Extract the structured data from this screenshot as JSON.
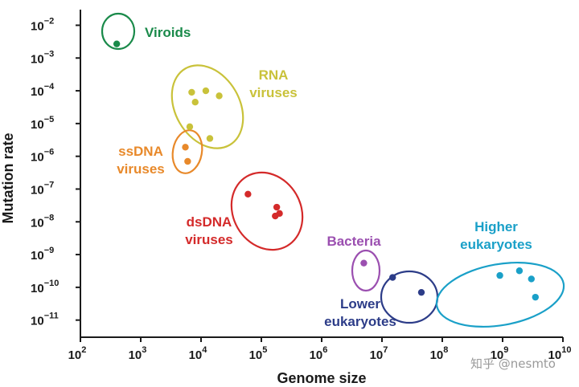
{
  "chart_data": {
    "type": "scatter",
    "xlabel": "Genome size",
    "ylabel": "Mutation rate",
    "x_scale": "log",
    "y_scale": "log",
    "xlim": [
      100,
      10000000000
    ],
    "ylim": [
      3e-12,
      0.03
    ],
    "x_ticks": [
      {
        "base": "10",
        "exp": "2"
      },
      {
        "base": "10",
        "exp": "3"
      },
      {
        "base": "10",
        "exp": "4"
      },
      {
        "base": "10",
        "exp": "5"
      },
      {
        "base": "10",
        "exp": "6"
      },
      {
        "base": "10",
        "exp": "7"
      },
      {
        "base": "10",
        "exp": "8"
      },
      {
        "base": "10",
        "exp": "9"
      },
      {
        "base": "10",
        "exp": "10"
      }
    ],
    "y_ticks": [
      {
        "base": "10",
        "exp": "−2"
      },
      {
        "base": "10",
        "exp": "−3"
      },
      {
        "base": "10",
        "exp": "−4"
      },
      {
        "base": "10",
        "exp": "−5"
      },
      {
        "base": "10",
        "exp": "−6"
      },
      {
        "base": "10",
        "exp": "−7"
      },
      {
        "base": "10",
        "exp": "−8"
      },
      {
        "base": "10",
        "exp": "−9"
      },
      {
        "base": "10",
        "exp": "−10"
      },
      {
        "base": "10",
        "exp": "−11"
      }
    ],
    "groups": [
      {
        "label": [
          "Viroids"
        ],
        "color": "#1a8a4a",
        "points": [
          [
            400,
            0.0027
          ]
        ]
      },
      {
        "label": [
          "RNA",
          "viruses"
        ],
        "color": "#c9c23a",
        "points": [
          [
            7000,
            9e-05
          ],
          [
            12000,
            0.0001
          ],
          [
            20000,
            7e-05
          ],
          [
            8000,
            4.5e-05
          ],
          [
            6500,
            8e-06
          ],
          [
            14000,
            3.5e-06
          ]
        ]
      },
      {
        "label": [
          "ssDNA",
          "viruses"
        ],
        "color": "#e8892a",
        "points": [
          [
            5500,
            1.9e-06
          ],
          [
            6000,
            7e-07
          ]
        ]
      },
      {
        "label": [
          "dsDNA",
          "viruses"
        ],
        "color": "#d42a2a",
        "points": [
          [
            60000,
            7e-08
          ],
          [
            180000,
            2.8e-08
          ],
          [
            200000,
            1.8e-08
          ],
          [
            170000,
            1.5e-08
          ]
        ]
      },
      {
        "label": [
          "Bacteria"
        ],
        "color": "#9b4fb0",
        "points": [
          [
            5000000,
            5.5e-10
          ]
        ]
      },
      {
        "label": [
          "Lower",
          "eukaryotes"
        ],
        "color": "#2c3c88",
        "points": [
          [
            15000000,
            2e-10
          ],
          [
            45000000,
            7e-11
          ]
        ]
      },
      {
        "label": [
          "Higher",
          "eukaryotes"
        ],
        "color": "#1aa0c8",
        "points": [
          [
            900000000,
            2.3e-10
          ],
          [
            1900000000,
            3.2e-10
          ],
          [
            3000000000,
            1.8e-10
          ],
          [
            3500000000,
            5e-11
          ]
        ]
      }
    ],
    "grid": false,
    "legend": "none"
  },
  "watermark": "知乎 @nesmto"
}
